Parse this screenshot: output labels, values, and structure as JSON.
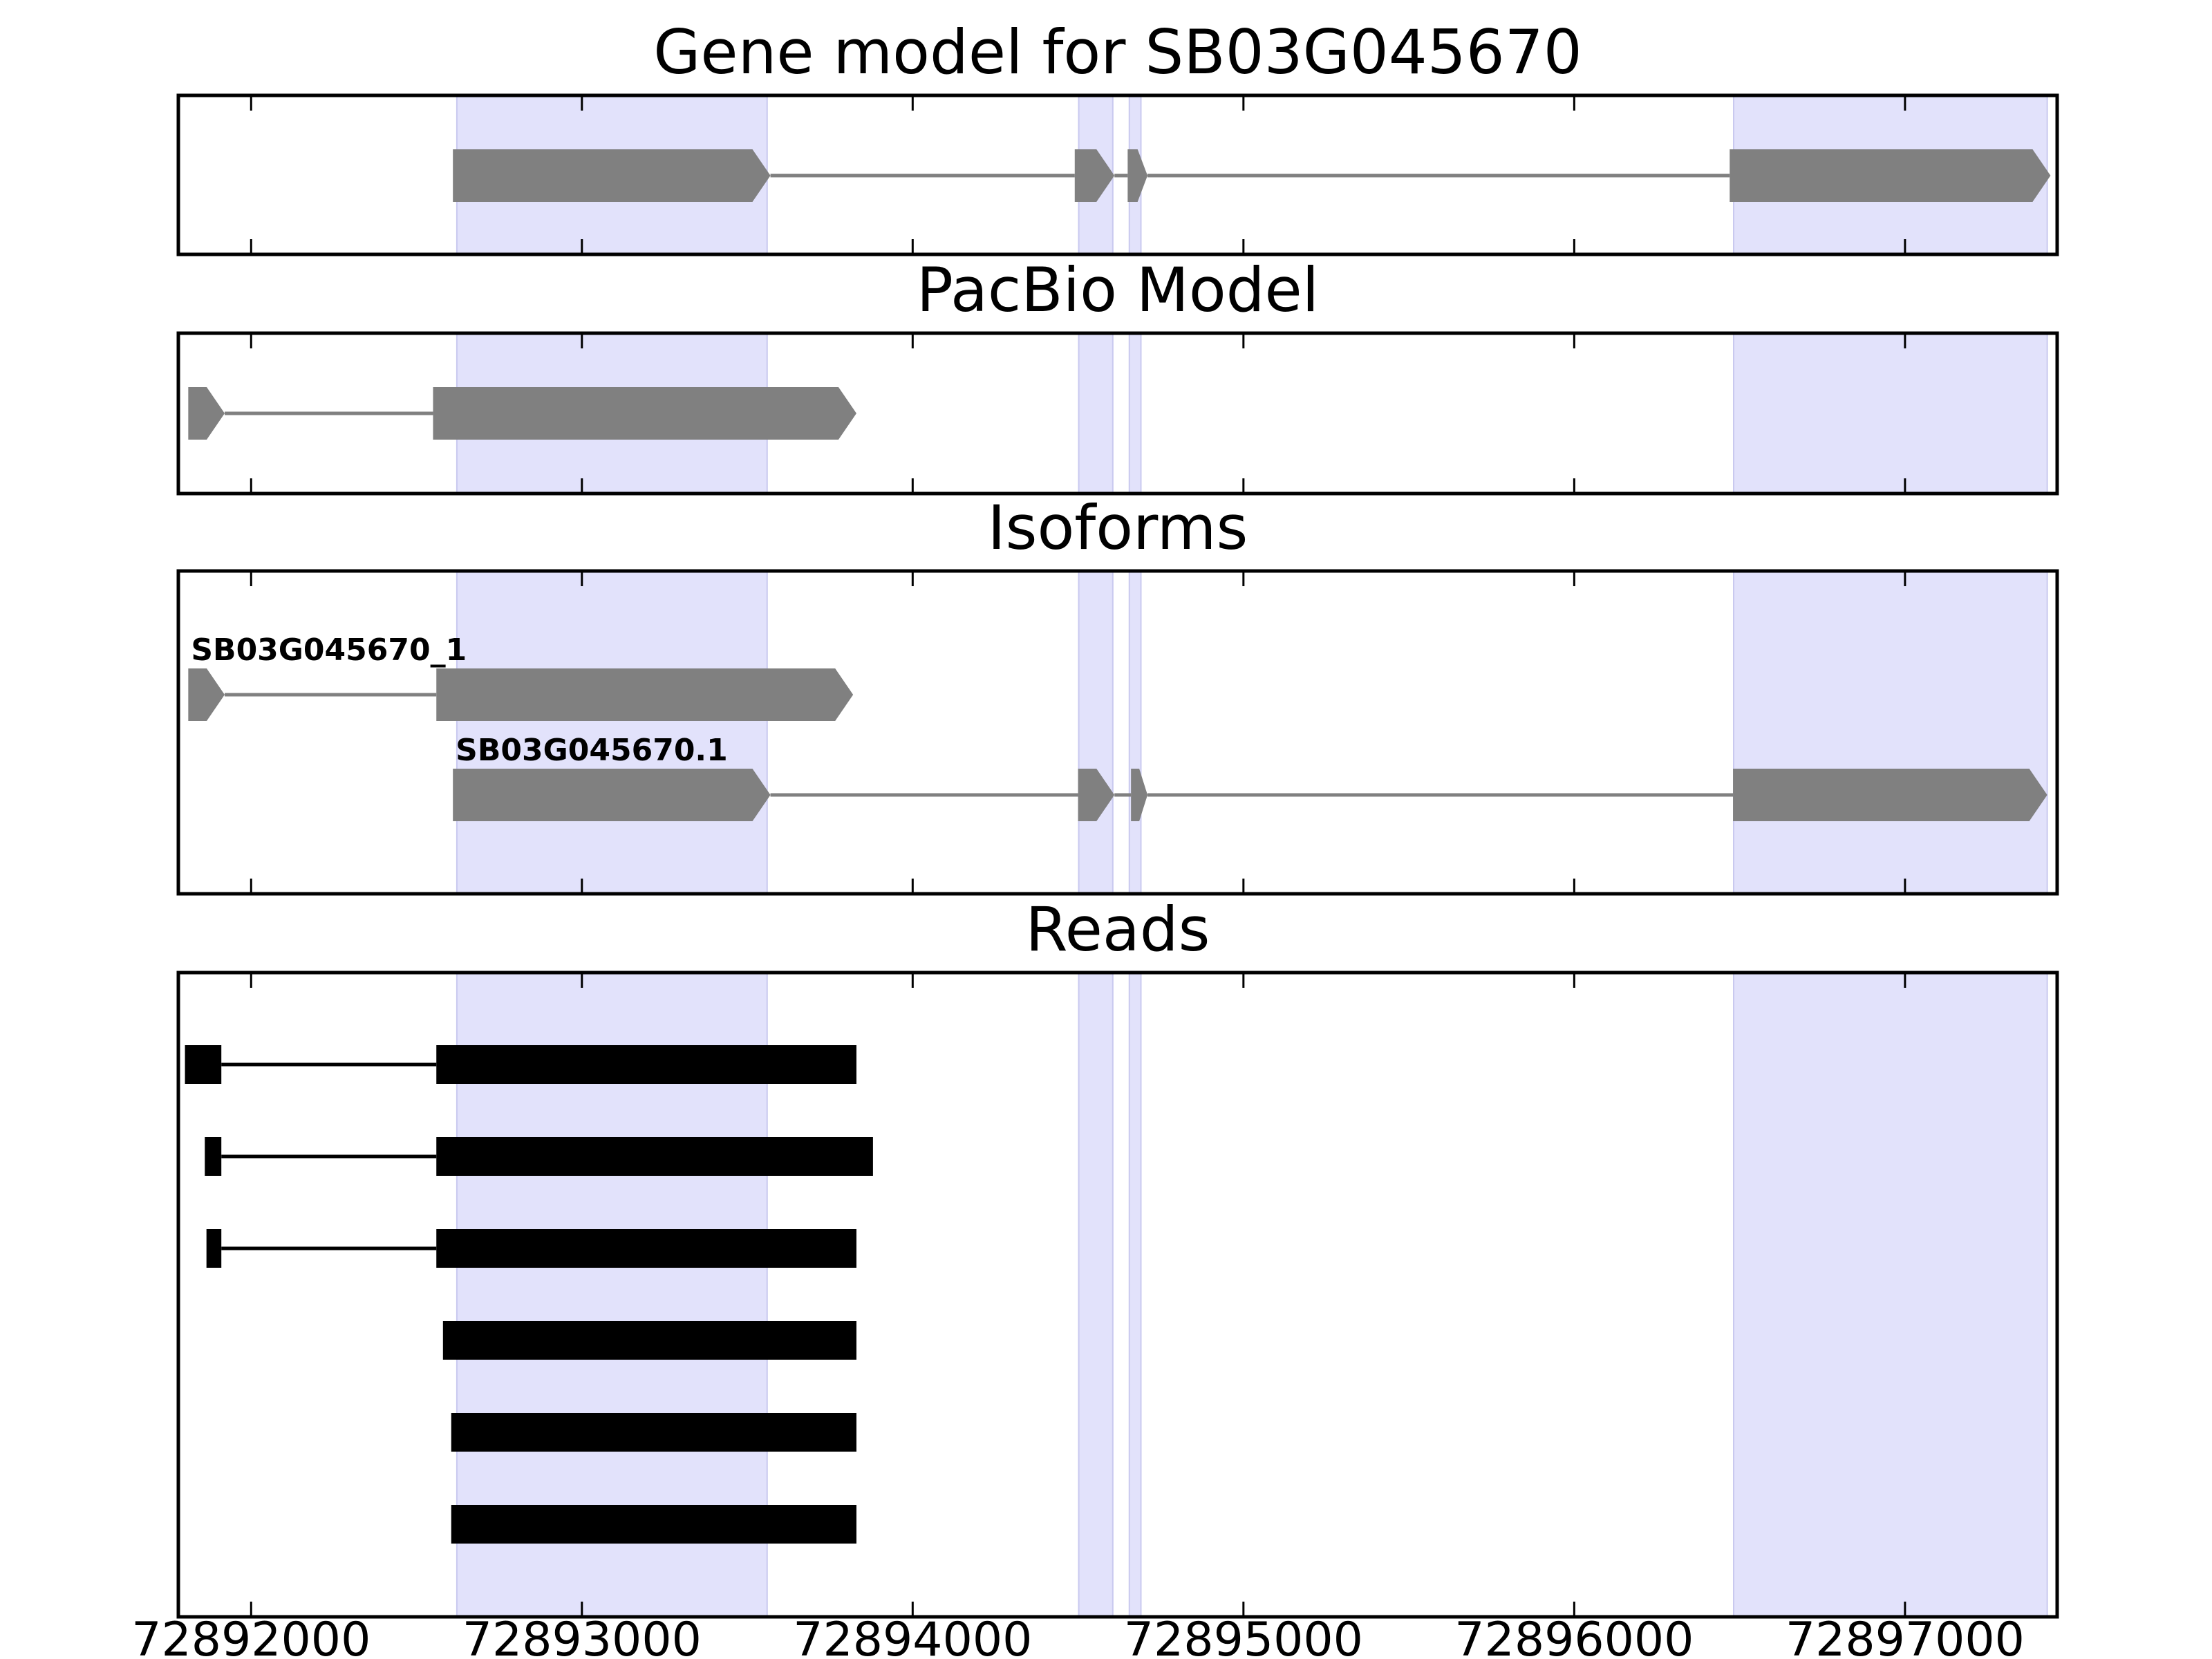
{
  "chart_data": {
    "type": "gene-structure",
    "xlim": [
      72891780,
      72897460
    ],
    "xticks": [
      72892000,
      72893000,
      72894000,
      72895000,
      72896000,
      72897000
    ],
    "xtick_labels": [
      "72892000",
      "72893000",
      "72894000",
      "72895000",
      "72896000",
      "72897000"
    ],
    "highlight_color": "#e2e2fb",
    "highlight_regions": [
      [
        72892622,
        72893560
      ],
      [
        72894502,
        72894605
      ],
      [
        72894655,
        72894690
      ],
      [
        72896482,
        72897430
      ]
    ],
    "panels": [
      {
        "title": "Gene model for SB03G045670",
        "type": "gene",
        "color": "#808080",
        "tracks": [
          {
            "label": "",
            "exons": [
              [
                72892610,
                72893570
              ],
              [
                72894490,
                72894610
              ],
              [
                72894650,
                72894710
              ],
              [
                72896470,
                72897440
              ]
            ]
          }
        ]
      },
      {
        "title": "PacBio Model",
        "type": "gene",
        "color": "#808080",
        "tracks": [
          {
            "label": "",
            "exons": [
              [
                72891810,
                72891920
              ],
              [
                72892550,
                72893830
              ]
            ]
          }
        ]
      },
      {
        "title": "Isoforms",
        "type": "gene",
        "color": "#808080",
        "tracks": [
          {
            "label": "SB03G045670_1",
            "exons": [
              [
                72891810,
                72891920
              ],
              [
                72892560,
                72893820
              ]
            ]
          },
          {
            "label": "SB03G045670.1",
            "exons": [
              [
                72892610,
                72893570
              ],
              [
                72894500,
                72894610
              ],
              [
                72894660,
                72894710
              ],
              [
                72896480,
                72897430
              ]
            ]
          }
        ]
      },
      {
        "title": "Reads",
        "type": "reads",
        "color": "#000000",
        "tracks": [
          {
            "label": "",
            "exons": [
              [
                72891800,
                72891910
              ],
              [
                72892560,
                72893830
              ]
            ]
          },
          {
            "label": "",
            "exons": [
              [
                72891860,
                72891910
              ],
              [
                72892560,
                72893880
              ]
            ]
          },
          {
            "label": "",
            "exons": [
              [
                72891865,
                72891910
              ],
              [
                72892560,
                72893830
              ]
            ]
          },
          {
            "label": "",
            "exons": [
              [
                72892580,
                72893830
              ]
            ]
          },
          {
            "label": "",
            "exons": [
              [
                72892605,
                72893830
              ]
            ]
          },
          {
            "label": "",
            "exons": [
              [
                72892605,
                72893830
              ]
            ]
          }
        ]
      }
    ]
  }
}
